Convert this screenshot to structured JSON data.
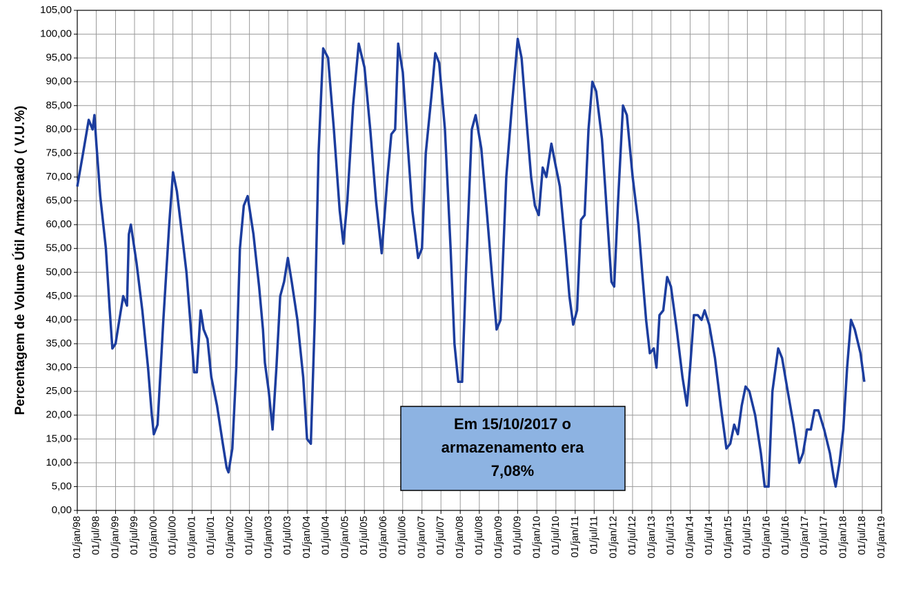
{
  "chart_data": {
    "type": "line",
    "ylabel": "Percentagem de Volume Útil Armazenado ( V.U.%)",
    "annotation": [
      "Em 15/10/2017 o",
      "armazenamento era",
      "7,08%"
    ],
    "color": "#1c3d9e",
    "grid": true,
    "ylim": [
      0,
      105
    ],
    "yticks": [
      {
        "value": 0,
        "label": "0,00"
      },
      {
        "value": 5,
        "label": "5,00"
      },
      {
        "value": 10,
        "label": "10,00"
      },
      {
        "value": 15,
        "label": "15,00"
      },
      {
        "value": 20,
        "label": "20,00"
      },
      {
        "value": 25,
        "label": "25,00"
      },
      {
        "value": 30,
        "label": "30,00"
      },
      {
        "value": 35,
        "label": "35,00"
      },
      {
        "value": 40,
        "label": "40,00"
      },
      {
        "value": 45,
        "label": "45,00"
      },
      {
        "value": 50,
        "label": "50,00"
      },
      {
        "value": 55,
        "label": "55,00"
      },
      {
        "value": 60,
        "label": "60,00"
      },
      {
        "value": 65,
        "label": "65,00"
      },
      {
        "value": 70,
        "label": "70,00"
      },
      {
        "value": 75,
        "label": "75,00"
      },
      {
        "value": 80,
        "label": "80,00"
      },
      {
        "value": 85,
        "label": "85,00"
      },
      {
        "value": 90,
        "label": "90,00"
      },
      {
        "value": 95,
        "label": "95,00"
      },
      {
        "value": 100,
        "label": "100,00"
      },
      {
        "value": 105,
        "label": "105,00"
      }
    ],
    "xlim": [
      "1998-01-01",
      "2019-01-01"
    ],
    "xticks": [
      {
        "value": "1998-01-01",
        "label": "01/jan/98"
      },
      {
        "value": "1998-07-01",
        "label": "01/jul/98"
      },
      {
        "value": "1999-01-01",
        "label": "01/jan/99"
      },
      {
        "value": "1999-07-01",
        "label": "01/jul/99"
      },
      {
        "value": "2000-01-01",
        "label": "01/jan/00"
      },
      {
        "value": "2000-07-01",
        "label": "01/jul/00"
      },
      {
        "value": "2001-01-01",
        "label": "01/jan/01"
      },
      {
        "value": "2001-07-01",
        "label": "01/jul/01"
      },
      {
        "value": "2002-01-01",
        "label": "01/jan/02"
      },
      {
        "value": "2002-07-01",
        "label": "01/jul/02"
      },
      {
        "value": "2003-01-01",
        "label": "01/jan/03"
      },
      {
        "value": "2003-07-01",
        "label": "01/jul/03"
      },
      {
        "value": "2004-01-01",
        "label": "01/jan/04"
      },
      {
        "value": "2004-07-01",
        "label": "01/jul/04"
      },
      {
        "value": "2005-01-01",
        "label": "01/jan/05"
      },
      {
        "value": "2005-07-01",
        "label": "01/jul/05"
      },
      {
        "value": "2006-01-01",
        "label": "01/jan/06"
      },
      {
        "value": "2006-07-01",
        "label": "01/jul/06"
      },
      {
        "value": "2007-01-01",
        "label": "01/jan/07"
      },
      {
        "value": "2007-07-01",
        "label": "01/jul/07"
      },
      {
        "value": "2008-01-01",
        "label": "01/jan/08"
      },
      {
        "value": "2008-07-01",
        "label": "01/jul/08"
      },
      {
        "value": "2009-01-01",
        "label": "01/jan/09"
      },
      {
        "value": "2009-07-01",
        "label": "01/jul/09"
      },
      {
        "value": "2010-01-01",
        "label": "01/jan/10"
      },
      {
        "value": "2010-07-01",
        "label": "01/jul/10"
      },
      {
        "value": "2011-01-01",
        "label": "01/jan/11"
      },
      {
        "value": "2011-07-01",
        "label": "01/jul/11"
      },
      {
        "value": "2012-01-01",
        "label": "01/jan/12"
      },
      {
        "value": "2012-07-01",
        "label": "01/jul/12"
      },
      {
        "value": "2013-01-01",
        "label": "01/jan/13"
      },
      {
        "value": "2013-07-01",
        "label": "01/jul/13"
      },
      {
        "value": "2014-01-01",
        "label": "01/jan/14"
      },
      {
        "value": "2014-07-01",
        "label": "01/jul/14"
      },
      {
        "value": "2015-01-01",
        "label": "01/jan/15"
      },
      {
        "value": "2015-07-01",
        "label": "01/jul/15"
      },
      {
        "value": "2016-01-01",
        "label": "01/jan/16"
      },
      {
        "value": "2016-07-01",
        "label": "01/jul/16"
      },
      {
        "value": "2017-01-01",
        "label": "01/jan/17"
      },
      {
        "value": "2017-07-01",
        "label": "01/jul/17"
      },
      {
        "value": "2018-01-01",
        "label": "01/jan/18"
      },
      {
        "value": "2018-07-01",
        "label": "01/jul/18"
      },
      {
        "value": "2019-01-01",
        "label": "01/jan/19"
      }
    ],
    "x": [
      "1998-01-01",
      "1998-02-25",
      "1998-04-20",
      "1998-05-27",
      "1998-06-14",
      "1998-07-02",
      "1998-08-08",
      "1998-10-01",
      "1998-11-07",
      "1998-12-02",
      "1999-01-01",
      "1999-02-06",
      "1999-03-15",
      "1999-04-20",
      "1999-05-08",
      "1999-05-27",
      "1999-07-20",
      "1999-09-13",
      "1999-11-07",
      "1999-12-13",
      "2000-01-01",
      "2000-02-06",
      "2000-04-01",
      "2000-05-27",
      "2000-07-02",
      "2000-08-08",
      "2000-10-01",
      "2000-11-07",
      "2000-12-13",
      "2001-01-19",
      "2001-02-14",
      "2001-03-23",
      "2001-04-20",
      "2001-05-27",
      "2001-07-02",
      "2001-08-26",
      "2001-10-20",
      "2001-11-25",
      "2001-12-13",
      "2002-01-19",
      "2002-02-25",
      "2002-04-01",
      "2002-05-08",
      "2002-06-14",
      "2002-08-08",
      "2002-10-01",
      "2002-11-07",
      "2002-11-25",
      "2003-01-01",
      "2003-02-06",
      "2003-03-15",
      "2003-04-20",
      "2003-05-27",
      "2003-07-02",
      "2003-08-08",
      "2003-10-01",
      "2003-11-25",
      "2004-01-01",
      "2004-02-06",
      "2004-03-15",
      "2004-04-20",
      "2004-06-03",
      "2004-07-20",
      "2004-09-13",
      "2004-11-07",
      "2004-12-13",
      "2005-01-19",
      "2005-03-15",
      "2005-05-08",
      "2005-07-02",
      "2005-08-26",
      "2005-10-20",
      "2005-12-13",
      "2006-02-06",
      "2006-03-15",
      "2006-04-20",
      "2006-05-19",
      "2006-07-02",
      "2006-08-08",
      "2006-10-01",
      "2006-11-25",
      "2007-01-01",
      "2007-02-06",
      "2007-04-01",
      "2007-05-08",
      "2007-06-14",
      "2007-08-08",
      "2007-10-01",
      "2007-11-07",
      "2007-12-13",
      "2008-01-19",
      "2008-02-25",
      "2008-04-20",
      "2008-05-27",
      "2008-07-20",
      "2008-09-13",
      "2008-11-07",
      "2008-12-13",
      "2009-01-19",
      "2009-03-15",
      "2009-05-08",
      "2009-07-02",
      "2009-08-08",
      "2009-10-01",
      "2009-11-07",
      "2009-12-13",
      "2010-01-19",
      "2010-02-25",
      "2010-04-01",
      "2010-05-19",
      "2010-07-02",
      "2010-08-08",
      "2010-10-01",
      "2010-11-07",
      "2010-12-13",
      "2011-01-19",
      "2011-02-25",
      "2011-04-01",
      "2011-05-08",
      "2011-06-14",
      "2011-07-20",
      "2011-09-13",
      "2011-11-07",
      "2011-12-13",
      "2012-01-08",
      "2012-02-14",
      "2012-04-01",
      "2012-05-08",
      "2012-07-02",
      "2012-08-26",
      "2012-10-01",
      "2012-11-07",
      "2012-12-13",
      "2013-01-19",
      "2013-02-14",
      "2013-03-15",
      "2013-04-20",
      "2013-05-27",
      "2013-07-02",
      "2013-08-26",
      "2013-10-20",
      "2013-12-02",
      "2014-01-01",
      "2014-02-06",
      "2014-03-15",
      "2014-04-20",
      "2014-05-19",
      "2014-07-02",
      "2014-08-26",
      "2014-10-20",
      "2014-12-13",
      "2015-01-19",
      "2015-02-25",
      "2015-04-01",
      "2015-05-08",
      "2015-06-14",
      "2015-07-20",
      "2015-09-13",
      "2015-11-07",
      "2015-12-13",
      "2016-01-19",
      "2016-02-25",
      "2016-04-20",
      "2016-05-27",
      "2016-07-20",
      "2016-09-13",
      "2016-11-07",
      "2016-12-13",
      "2017-01-19",
      "2017-02-25",
      "2017-04-01",
      "2017-05-08",
      "2017-07-02",
      "2017-08-26",
      "2017-10-01",
      "2017-10-20",
      "2017-11-25",
      "2018-01-01",
      "2018-02-06",
      "2018-03-15",
      "2018-04-20",
      "2018-06-14",
      "2018-07-20"
    ],
    "values": [
      68,
      75,
      82,
      80,
      83,
      77,
      66,
      55,
      42,
      34,
      35,
      40,
      45,
      43,
      58,
      60,
      52,
      42,
      30,
      20,
      16,
      18,
      40,
      60,
      71,
      67,
      57,
      50,
      40,
      29,
      29,
      42,
      38,
      36,
      28,
      22,
      14,
      9,
      8,
      13,
      30,
      55,
      64,
      66,
      58,
      47,
      38,
      31,
      25,
      17,
      30,
      45,
      48,
      53,
      48,
      40,
      28,
      15,
      14,
      40,
      75,
      97,
      95,
      80,
      63,
      56,
      65,
      85,
      98,
      93,
      80,
      65,
      54,
      70,
      79,
      80,
      98,
      92,
      80,
      63,
      53,
      55,
      75,
      87,
      96,
      94,
      80,
      55,
      35,
      27,
      27,
      50,
      80,
      83,
      76,
      62,
      47,
      38,
      40,
      70,
      85,
      99,
      95,
      80,
      70,
      64,
      62,
      72,
      70,
      77,
      72,
      68,
      55,
      45,
      39,
      42,
      61,
      62,
      80,
      90,
      88,
      78,
      60,
      48,
      47,
      65,
      85,
      83,
      70,
      60,
      50,
      40,
      33,
      34,
      30,
      41,
      42,
      49,
      47,
      38,
      28,
      22,
      30,
      41,
      41,
      40,
      42,
      39,
      32,
      22,
      13,
      14,
      18,
      16,
      22,
      26,
      25,
      20,
      12,
      5,
      5,
      25,
      34,
      32,
      25,
      18,
      10,
      12,
      17,
      17,
      21,
      21,
      17,
      12,
      7,
      5,
      10,
      17,
      30,
      40,
      38,
      33,
      27
    ]
  }
}
